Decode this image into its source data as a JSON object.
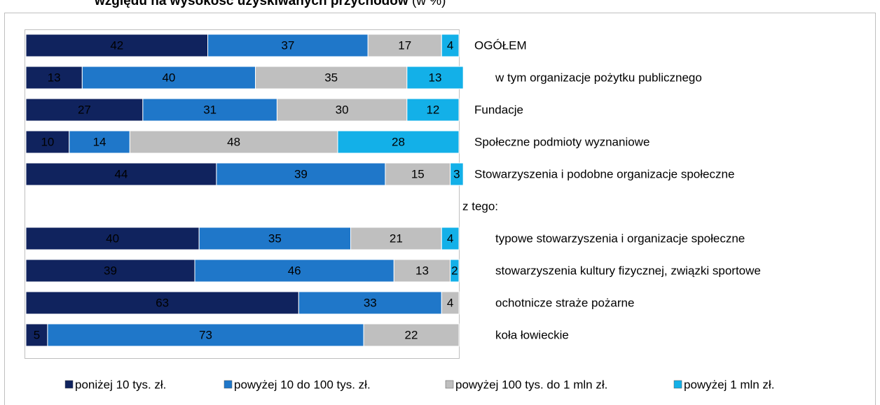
{
  "chart_data": {
    "type": "stacked_barh",
    "title": "względu na wysokość uzyskiwanych przychodów",
    "title_unit": "(w %)",
    "categories": [
      "OGÓŁEM",
      "w tym organizacje pożytku publicznego",
      "Fundacje",
      "Społeczne podmioty wyznaniowe",
      "Stowarzyszenia i podobne organizacje społeczne",
      "z tego:",
      "typowe stowarzyszenia i organizacje społeczne",
      "stowarzyszenia kultury fizycznej, związki sportowe",
      "ochotnicze straże pożarne",
      "koła łowieckie"
    ],
    "series": [
      {
        "name": "poniżej 10 tys. zł.",
        "color": "#10235e",
        "values": [
          42,
          13,
          27,
          10,
          44,
          null,
          40,
          39,
          63,
          5
        ]
      },
      {
        "name": "powyżej 10 do 100 tys. zł.",
        "color": "#1f77c9",
        "values": [
          37,
          40,
          31,
          14,
          39,
          null,
          35,
          46,
          33,
          73
        ]
      },
      {
        "name": "powyżej 100 tys. do 1 mln zł.",
        "color": "#bfbfbf",
        "values": [
          17,
          35,
          30,
          48,
          15,
          null,
          21,
          13,
          4,
          22
        ]
      },
      {
        "name": "powyżej 1 mln zł.",
        "color": "#13b0e8",
        "values": [
          4,
          13,
          12,
          28,
          3,
          null,
          4,
          2,
          null,
          null
        ]
      }
    ],
    "xlim": [
      0,
      100
    ],
    "legend": "bottom"
  }
}
